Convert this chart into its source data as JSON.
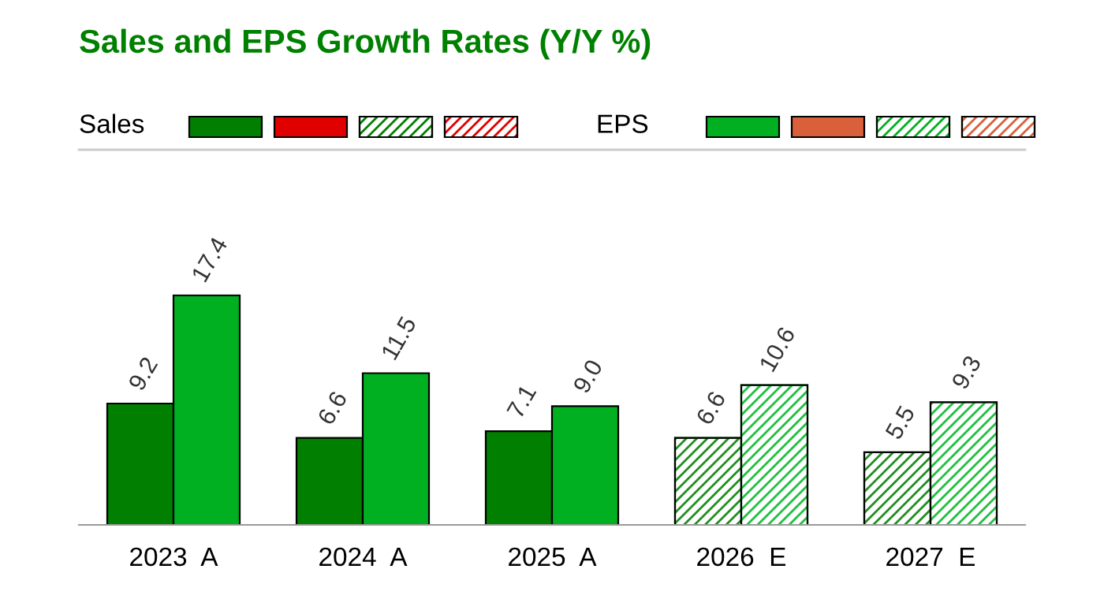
{
  "chart_data": {
    "type": "bar",
    "title": "Sales and EPS Growth Rates (Y/Y %)",
    "categories": [
      "2023  A",
      "2024  A",
      "2025  A",
      "2026  E",
      "2027  E"
    ],
    "series": [
      {
        "name": "Sales",
        "color": "#007f00",
        "values": [
          9.2,
          6.6,
          7.1,
          6.6,
          5.5
        ],
        "colors": [
          "#007f00",
          "#007f00",
          "#007f00",
          "#1f8f1f",
          "#1f8f1f"
        ],
        "value_labels": [
          "9.2",
          "6.6",
          "7.1",
          "6.6",
          "5.5"
        ]
      },
      {
        "color": "#e00000",
        "values": [
          null,
          null,
          null,
          null,
          null
        ]
      },
      {
        "name": "EPS",
        "color": "#00b020",
        "values": [
          17.4,
          11.5,
          9.0,
          10.6,
          9.3
        ],
        "colors": [
          "#00b020",
          "#00b020",
          "#00b020",
          "#20c040",
          "#20c040"
        ],
        "value_labels": [
          "17.4",
          "11.5",
          "9.0",
          "10.6",
          "9.3"
        ]
      },
      {
        "color": "#d9603b",
        "values": [
          null,
          null,
          null,
          null,
          null
        ]
      }
    ],
    "legend": "top left",
    "grid": false
  }
}
